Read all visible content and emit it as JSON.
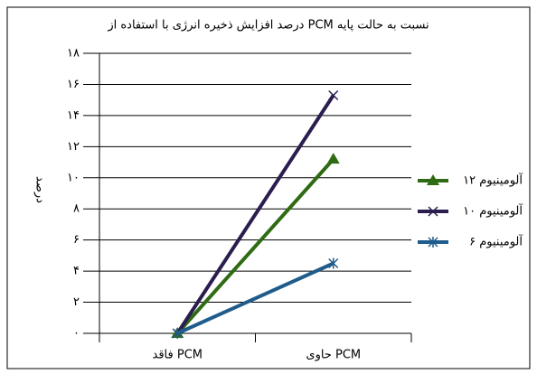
{
  "chart_data": {
    "type": "line",
    "title": "درصد افزایش ذخیره انرژی با استفاده از PCM نسبت به حالت پایه",
    "y_label": "درصد",
    "categories": [
      "فاقد PCM",
      "حاوی PCM"
    ],
    "series": [
      {
        "name": "آلومینیوم ۱۲",
        "color": "#2e6b12",
        "marker": "triangle",
        "values": [
          0,
          11.2
        ]
      },
      {
        "name": "آلومینیوم ۱۰",
        "color": "#2b1d4f",
        "marker": "x",
        "values": [
          0,
          15.3
        ]
      },
      {
        "name": "آلومینیوم ۶",
        "color": "#1f5c8c",
        "marker": "asterisk",
        "values": [
          0,
          4.5
        ]
      }
    ],
    "ylim": [
      0,
      18
    ],
    "yticks": [
      {
        "value": 0,
        "label": "۰"
      },
      {
        "value": 2,
        "label": "۲"
      },
      {
        "value": 4,
        "label": "۴"
      },
      {
        "value": 6,
        "label": "۶"
      },
      {
        "value": 8,
        "label": "۸"
      },
      {
        "value": 10,
        "label": "۱۰"
      },
      {
        "value": 12,
        "label": "۱۲"
      },
      {
        "value": 14,
        "label": "۱۴"
      },
      {
        "value": 16,
        "label": "۱۶"
      },
      {
        "value": 18,
        "label": "۱۸"
      }
    ],
    "grid": true
  }
}
